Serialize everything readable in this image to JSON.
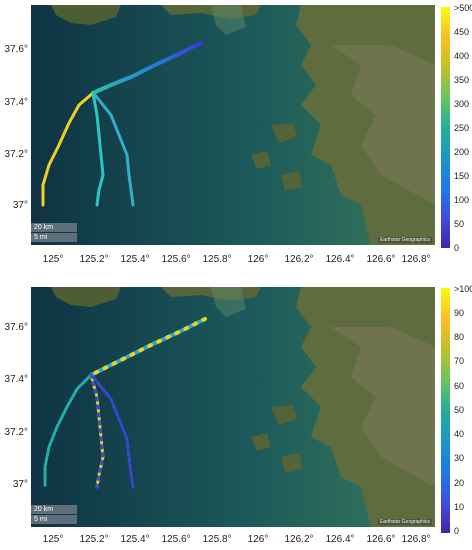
{
  "panels": [
    {
      "id": "top",
      "yticks": [
        "37.6°",
        "37.4°",
        "37.2°",
        "37°"
      ],
      "xticks": [
        "125°",
        "125.2°",
        "125.4°",
        "125.6°",
        "125.8°",
        "126°",
        "126.2°",
        "126.4°",
        "126.6°",
        "126.8°"
      ],
      "colorbar": {
        "ticks": [
          ">500",
          "450",
          "400",
          "350",
          "300",
          "250",
          "200",
          "150",
          "100",
          "50",
          "0"
        ],
        "min": 0,
        "max": 500
      },
      "scalebar": {
        "km": "20 km",
        "mi": "5 mi"
      },
      "credit": "Earthstar Geographics"
    },
    {
      "id": "bottom",
      "yticks": [
        "37.6°",
        "37.4°",
        "37.2°",
        "37°"
      ],
      "xticks": [
        "125°",
        "125.2°",
        "125.4°",
        "125.6°",
        "125.8°",
        "126°",
        "126.2°",
        "126.4°",
        "126.6°",
        "126.8°"
      ],
      "colorbar": {
        "ticks": [
          ">100",
          "90",
          "80",
          "70",
          "60",
          "50",
          "40",
          "30",
          "20",
          "10",
          "0"
        ],
        "min": 0,
        "max": 100
      },
      "scalebar": {
        "km": "20 km",
        "mi": "5 mi"
      },
      "credit": "Earthstar Geographics"
    }
  ],
  "colors": {
    "sea": "#123a4a",
    "land": "#5b6a3c",
    "parula_low": "#3e26a8",
    "parula_mid": "#20b2aa",
    "parula_high": "#f9fb0e"
  }
}
